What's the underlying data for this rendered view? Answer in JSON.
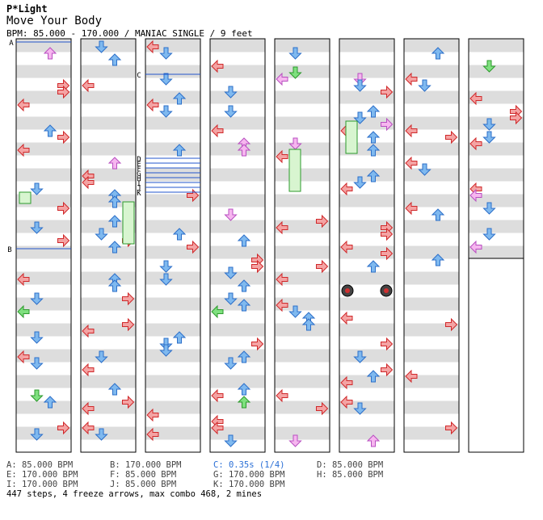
{
  "song": {
    "artist": "P*Light",
    "title": "Move Your Body",
    "info": "BPM: 85.000 - 170.000 / MANIAC SINGLE / 9 feet"
  },
  "colors": {
    "arrow_red": "#f4a3a3",
    "arrow_red_stroke": "#d0282a",
    "arrow_blue": "#7fb9ef",
    "arrow_blue_stroke": "#2c6fc9",
    "arrow_pink": "#f6b6ef",
    "arrow_pink_stroke": "#b84fc0",
    "arrow_green": "#7fe07f",
    "arrow_green_stroke": "#2d9a2d",
    "freeze_fill": "#d8f5d0",
    "stripe": "#dddddd",
    "marker_line": "#2255cc",
    "legend_highlight": "#2a6fd6"
  },
  "markers": [
    {
      "label": "A",
      "column": 1
    },
    {
      "label": "B",
      "column": 1
    },
    {
      "label": "C",
      "column": 3
    },
    {
      "label": "D",
      "column": 3
    },
    {
      "label": "E",
      "column": 3
    },
    {
      "label": "F",
      "column": 3
    },
    {
      "label": "G",
      "column": 3
    },
    {
      "label": "H",
      "column": 3
    },
    {
      "label": "I",
      "column": 3
    },
    {
      "label": "J",
      "column": 3
    },
    {
      "label": "K",
      "column": 3
    }
  ],
  "legend": [
    {
      "text": "A: 85.000 BPM"
    },
    {
      "text": "B: 170.000 BPM"
    },
    {
      "text": "C: 0.35s (1/4)",
      "highlight": true
    },
    {
      "text": "D: 85.000 BPM"
    },
    {
      "text": "E: 170.000 BPM"
    },
    {
      "text": "F: 85.000 BPM"
    },
    {
      "text": "G: 170.000 BPM"
    },
    {
      "text": "H: 85.000 BPM"
    },
    {
      "text": "I: 170.000 BPM"
    },
    {
      "text": "J: 85.000 BPM"
    },
    {
      "text": "K: 170.000 BPM"
    }
  ],
  "stats": "447 steps, 4 freeze arrows, max combo 468, 2 mines"
}
